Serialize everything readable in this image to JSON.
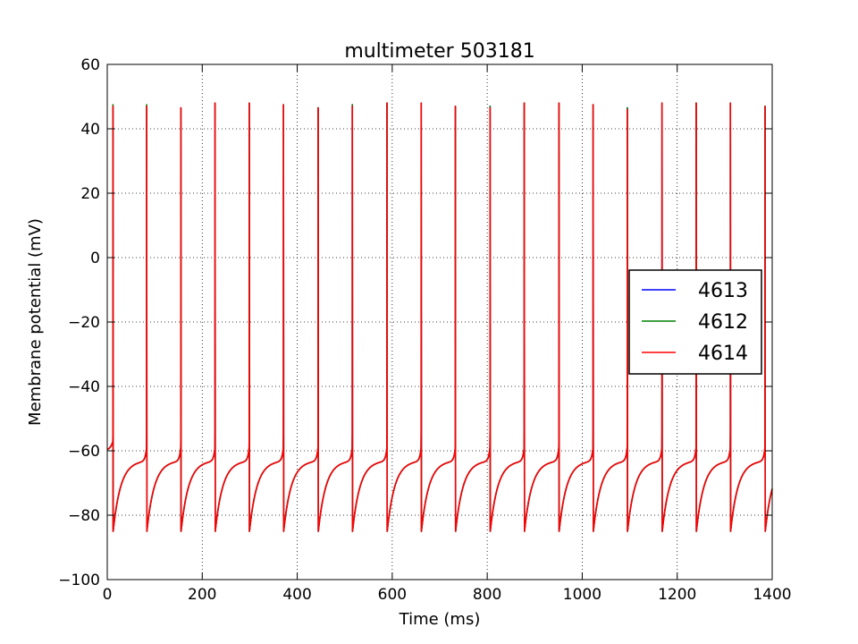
{
  "chart_data": {
    "type": "line",
    "title": "multimeter 503181",
    "xlabel": "Time (ms)",
    "ylabel": "Membrane potential (mV)",
    "xlim": [
      0,
      1400
    ],
    "ylim": [
      -100,
      60
    ],
    "x_ticks": [
      0,
      200,
      400,
      600,
      800,
      1000,
      1200,
      1400
    ],
    "y_ticks": [
      60,
      40,
      20,
      0,
      -20,
      -40,
      -60,
      -80,
      -100
    ],
    "x_tick_labels": [
      "0",
      "200",
      "400",
      "600",
      "800",
      "1000",
      "1200",
      "1400"
    ],
    "y_tick_labels": [
      "60",
      "40",
      "20",
      "0",
      "−20",
      "−40",
      "−60",
      "−80",
      "−100"
    ],
    "grid": true,
    "legend_position": "right",
    "waveform": {
      "start_value": -60,
      "peak_value": 47,
      "trough_value": -85,
      "threshold_value": -57
    },
    "series": [
      {
        "name": "4613",
        "color": "#0000ff",
        "spike_times": [
          12,
          83,
          155,
          227,
          299,
          371,
          444,
          516,
          589,
          661,
          733,
          806,
          878,
          951,
          1023,
          1095,
          1168,
          1240,
          1312,
          1385
        ],
        "spike_peaks": [
          47,
          47,
          46.5,
          48,
          48,
          47.5,
          46.5,
          47.5,
          48,
          48,
          47,
          47,
          48,
          48,
          47.5,
          46.5,
          48,
          48,
          48,
          47
        ]
      },
      {
        "name": "4612",
        "color": "#008000",
        "spike_times": [
          12,
          83,
          155,
          227,
          299,
          371,
          444,
          516,
          589,
          661,
          733,
          806,
          878,
          951,
          1023,
          1095,
          1168,
          1240,
          1312,
          1385
        ],
        "spike_peaks": [
          47.5,
          47.5,
          46.5,
          48,
          48,
          47.5,
          46.5,
          47.5,
          48,
          48,
          47,
          47,
          48,
          48,
          47.5,
          46.5,
          48,
          48,
          48,
          47
        ]
      },
      {
        "name": "4614",
        "color": "#ff0000",
        "spike_times": [
          12,
          83,
          155,
          227,
          299,
          371,
          444,
          516,
          589,
          661,
          733,
          806,
          878,
          951,
          1023,
          1095,
          1168,
          1240,
          1312,
          1385
        ],
        "spike_peaks": [
          47,
          47,
          46.5,
          48,
          48,
          47.5,
          46.5,
          47,
          48,
          48,
          47,
          46.5,
          48,
          48,
          47.5,
          46,
          48,
          48,
          48,
          47
        ]
      }
    ]
  }
}
